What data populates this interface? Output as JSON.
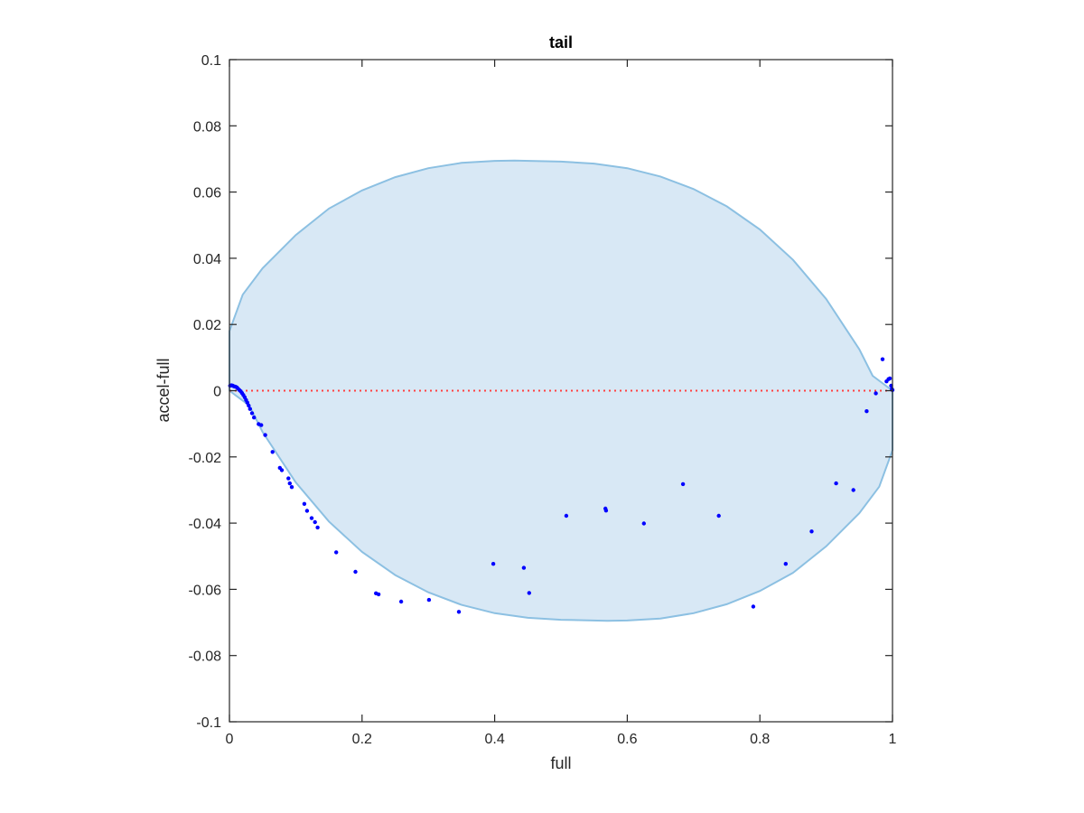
{
  "chart_data": {
    "type": "scatter",
    "title": "tail",
    "xlabel": "full",
    "ylabel": "accel-full",
    "xlim": [
      0,
      1
    ],
    "ylim": [
      -0.1,
      0.1
    ],
    "x_ticks": [
      0,
      0.2,
      0.4,
      0.6,
      0.8,
      1
    ],
    "x_tick_labels": [
      "0",
      "0.2",
      "0.4",
      "0.6",
      "0.8",
      "1"
    ],
    "y_ticks": [
      -0.1,
      -0.08,
      -0.06,
      -0.04,
      -0.02,
      0,
      0.02,
      0.04,
      0.06,
      0.08,
      0.1
    ],
    "y_tick_labels": [
      "-0.1",
      "-0.08",
      "-0.06",
      "-0.04",
      "-0.02",
      "0",
      "0.02",
      "0.04",
      "0.06",
      "0.08",
      "0.1"
    ],
    "grid": false,
    "colors": {
      "points": "#0000ff",
      "region_fill": "#d8e8f5",
      "region_edge": "#8cc0e2",
      "zero_line": "#ff4040",
      "axes": "#262626"
    },
    "region": {
      "top": [
        [
          0,
          0.018
        ],
        [
          0.02,
          0.029
        ],
        [
          0.05,
          0.037
        ],
        [
          0.1,
          0.047
        ],
        [
          0.15,
          0.055
        ],
        [
          0.2,
          0.0605
        ],
        [
          0.25,
          0.0645
        ],
        [
          0.3,
          0.0672
        ],
        [
          0.35,
          0.0688
        ],
        [
          0.4,
          0.0694
        ],
        [
          0.43,
          0.0695
        ],
        [
          0.5,
          0.0692
        ],
        [
          0.55,
          0.0686
        ],
        [
          0.6,
          0.0672
        ],
        [
          0.65,
          0.0647
        ],
        [
          0.7,
          0.0609
        ],
        [
          0.75,
          0.0557
        ],
        [
          0.8,
          0.0487
        ],
        [
          0.85,
          0.0395
        ],
        [
          0.9,
          0.0277
        ],
        [
          0.95,
          0.0125
        ],
        [
          0.97,
          0.0045
        ],
        [
          1.0,
          0.0
        ]
      ],
      "bottom": [
        [
          0,
          0.0
        ],
        [
          0.03,
          -0.0045
        ],
        [
          0.05,
          -0.0125
        ],
        [
          0.1,
          -0.0277
        ],
        [
          0.15,
          -0.0395
        ],
        [
          0.2,
          -0.0487
        ],
        [
          0.25,
          -0.0557
        ],
        [
          0.3,
          -0.0609
        ],
        [
          0.35,
          -0.0647
        ],
        [
          0.4,
          -0.0672
        ],
        [
          0.45,
          -0.0686
        ],
        [
          0.5,
          -0.0692
        ],
        [
          0.57,
          -0.0695
        ],
        [
          0.6,
          -0.0694
        ],
        [
          0.65,
          -0.0688
        ],
        [
          0.7,
          -0.0672
        ],
        [
          0.75,
          -0.0645
        ],
        [
          0.8,
          -0.0605
        ],
        [
          0.85,
          -0.055
        ],
        [
          0.9,
          -0.047
        ],
        [
          0.95,
          -0.037
        ],
        [
          0.98,
          -0.029
        ],
        [
          1.0,
          -0.018
        ]
      ]
    },
    "zero_line_y": 0,
    "series": [
      {
        "values": [
          [
            0.001,
            0.0015
          ],
          [
            0.003,
            0.0016
          ],
          [
            0.005,
            0.0015
          ],
          [
            0.007,
            0.0013
          ],
          [
            0.009,
            0.0012
          ],
          [
            0.011,
            0.001
          ],
          [
            0.013,
            0.0006
          ],
          [
            0.015,
            0.0002
          ],
          [
            0.017,
            -0.0002
          ],
          [
            0.019,
            -0.0007
          ],
          [
            0.021,
            -0.0013
          ],
          [
            0.023,
            -0.002
          ],
          [
            0.025,
            -0.0028
          ],
          [
            0.027,
            -0.0036
          ],
          [
            0.029,
            -0.0045
          ],
          [
            0.031,
            -0.0055
          ],
          [
            0.034,
            -0.0068
          ],
          [
            0.037,
            -0.0081
          ],
          [
            0.044,
            -0.0101
          ],
          [
            0.048,
            -0.0104
          ],
          [
            0.054,
            -0.0134
          ],
          [
            0.065,
            -0.0185
          ],
          [
            0.076,
            -0.0233
          ],
          [
            0.079,
            -0.024
          ],
          [
            0.089,
            -0.0265
          ],
          [
            0.091,
            -0.028
          ],
          [
            0.094,
            -0.0291
          ],
          [
            0.113,
            -0.0342
          ],
          [
            0.117,
            -0.0363
          ],
          [
            0.124,
            -0.0385
          ],
          [
            0.129,
            -0.0397
          ],
          [
            0.133,
            -0.0413
          ],
          [
            0.161,
            -0.0488
          ],
          [
            0.19,
            -0.0547
          ],
          [
            0.221,
            -0.0612
          ],
          [
            0.225,
            -0.0615
          ],
          [
            0.259,
            -0.0637
          ],
          [
            0.301,
            -0.0632
          ],
          [
            0.346,
            -0.0668
          ],
          [
            0.398,
            -0.0523
          ],
          [
            0.444,
            -0.0535
          ],
          [
            0.452,
            -0.0611
          ],
          [
            0.508,
            -0.0378
          ],
          [
            0.567,
            -0.0356
          ],
          [
            0.568,
            -0.0362
          ],
          [
            0.625,
            -0.0401
          ],
          [
            0.684,
            -0.0282
          ],
          [
            0.738,
            -0.0378
          ],
          [
            0.79,
            -0.0652
          ],
          [
            0.839,
            -0.0523
          ],
          [
            0.878,
            -0.0425
          ],
          [
            0.915,
            -0.028
          ],
          [
            0.941,
            -0.03
          ],
          [
            0.961,
            -0.0062
          ],
          [
            0.975,
            -0.0008
          ],
          [
            0.985,
            0.0095
          ],
          [
            0.991,
            0.0028
          ],
          [
            0.994,
            0.0035
          ],
          [
            0.996,
            0.0037
          ],
          [
            0.998,
            0.0015
          ],
          [
            0.999,
            0.0005
          ],
          [
            1.0,
            0.0002
          ]
        ]
      }
    ]
  }
}
